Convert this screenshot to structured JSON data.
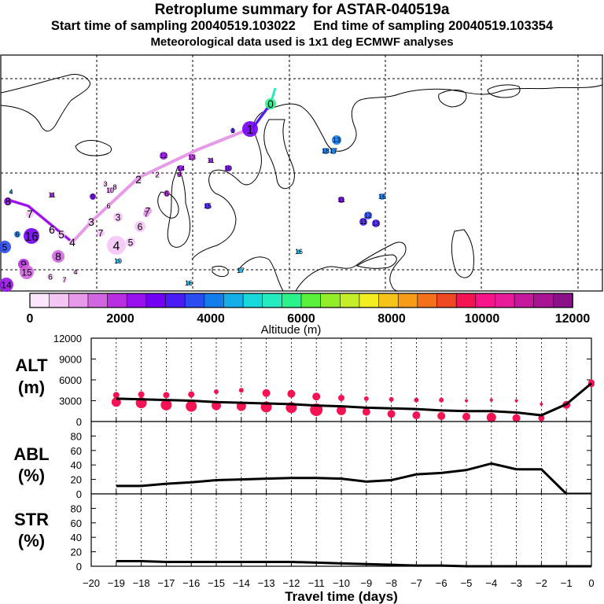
{
  "header": {
    "title": "Retroplume summary for ASTAR-040519a",
    "sampling_line": "Start time of sampling 20040519.103022     End time of sampling 20040519.103354",
    "met_line": "Meteorological data used is 1x1 deg ECMWF analyses"
  },
  "colorbar": {
    "label": "Altitude (m)",
    "ticks": [
      "0",
      "2000",
      "4000",
      "6000",
      "8000",
      "10000",
      "12000"
    ],
    "colors": [
      "#fbe6fb",
      "#f4c6f4",
      "#e79ae9",
      "#d266e0",
      "#b92ee0",
      "#9910ee",
      "#7200f2",
      "#4a1cf5",
      "#2a4cf0",
      "#147dec",
      "#14aee8",
      "#18d8dc",
      "#24ecc0",
      "#2cf28c",
      "#5af03c",
      "#92ee28",
      "#c6ee28",
      "#f2ee20",
      "#f6c418",
      "#f69c18",
      "#f4701c",
      "#ef4824",
      "#f41454",
      "#f6148a",
      "#e81c9a",
      "#c6189c",
      "#a81494",
      "#8a108a"
    ]
  },
  "map": {
    "trajectory_labels": [
      "0",
      "1",
      "2",
      "3",
      "4",
      "5",
      "6",
      "7",
      "8",
      "9",
      "10",
      "11",
      "12",
      "13",
      "14",
      "15",
      "16",
      "17",
      "18",
      "19"
    ]
  },
  "chart_data": [
    {
      "type": "line",
      "panel_label": "ALT\n(m)",
      "ylabel": "ALT (m)",
      "ylim": [
        0,
        12000
      ],
      "yticks": [
        "0",
        "3000",
        "6000",
        "9000",
        "12000"
      ],
      "x": [
        -19,
        -18,
        -17,
        -16,
        -15,
        -14,
        -13,
        -12,
        -11,
        -10,
        -9,
        -8,
        -7,
        -6,
        -5,
        -4,
        -3,
        -2,
        -1,
        0
      ],
      "series": [
        {
          "name": "median altitude",
          "values": [
            3300,
            3200,
            3100,
            3000,
            2800,
            2700,
            2600,
            2500,
            2300,
            2200,
            2000,
            1900,
            1800,
            1600,
            1500,
            1500,
            1300,
            900,
            2500,
            5500
          ]
        },
        {
          "name": "cluster upper",
          "values": [
            3800,
            3900,
            3800,
            3900,
            4300,
            4500,
            4100,
            4000,
            3600,
            3400,
            3300,
            3200,
            3100,
            3100,
            3000,
            3100,
            3000,
            2500,
            2600,
            5600
          ]
        },
        {
          "name": "cluster lower",
          "values": [
            2800,
            2700,
            2400,
            2200,
            2300,
            2200,
            2100,
            2000,
            1700,
            1600,
            1400,
            1100,
            900,
            800,
            700,
            600,
            500,
            500,
            2400,
            5400
          ]
        }
      ]
    },
    {
      "type": "line",
      "panel_label": "ABL\n(%)",
      "ylabel": "ABL (%)",
      "ylim": [
        0,
        100
      ],
      "yticks": [
        "0",
        "20",
        "40",
        "60",
        "80"
      ],
      "x": [
        -19,
        -18,
        -17,
        -16,
        -15,
        -14,
        -13,
        -12,
        -11,
        -10,
        -9,
        -8,
        -7,
        -6,
        -5,
        -4,
        -3,
        -2,
        -1,
        0
      ],
      "series": [
        {
          "name": "ABL fraction",
          "values": [
            11,
            11,
            14,
            16,
            19,
            20,
            21,
            22,
            22,
            21,
            17,
            19,
            27,
            29,
            33,
            42,
            34,
            34,
            0,
            0
          ]
        }
      ]
    },
    {
      "type": "line",
      "panel_label": "STR\n(%)",
      "ylabel": "STR (%)",
      "ylim": [
        0,
        100
      ],
      "yticks": [
        "0",
        "20",
        "40",
        "60",
        "80"
      ],
      "x": [
        -19,
        -18,
        -17,
        -16,
        -15,
        -14,
        -13,
        -12,
        -11,
        -10,
        -9,
        -8,
        -7,
        -6,
        -5,
        -4,
        -3,
        -2,
        -1,
        0
      ],
      "series": [
        {
          "name": "stratospheric fraction",
          "values": [
            7,
            7,
            6,
            6,
            6,
            6,
            6,
            6,
            5,
            4,
            3,
            2,
            1,
            1,
            0,
            0,
            0,
            0,
            0,
            0
          ]
        }
      ]
    }
  ],
  "xaxis": {
    "label": "Travel time (days)",
    "ticks": [
      "−20",
      "−19",
      "−18",
      "−17",
      "−16",
      "−15",
      "−14",
      "−13",
      "−12",
      "−11",
      "−10",
      "−9",
      "−8",
      "−7",
      "−6",
      "−5",
      "−4",
      "−3",
      "−2",
      "−1",
      "0"
    ]
  }
}
